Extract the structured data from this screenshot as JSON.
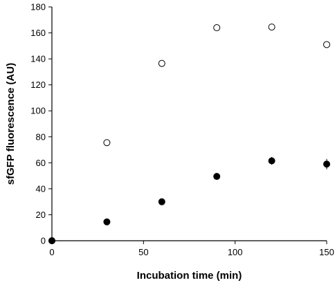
{
  "chart_data": {
    "type": "scatter",
    "title": "",
    "xlabel": "Incubation time (min)",
    "ylabel": "sfGFP fluorescence (AU)",
    "xlim": [
      0,
      150
    ],
    "ylim": [
      0,
      180
    ],
    "x_ticks": [
      0,
      50,
      100,
      150
    ],
    "y_ticks": [
      0,
      20,
      40,
      60,
      80,
      100,
      120,
      140,
      160,
      180
    ],
    "grid": false,
    "legend": "none",
    "series": [
      {
        "marker": "open-circle",
        "color": "#000000",
        "points": [
          {
            "x": 0,
            "y": 0,
            "err": 0
          },
          {
            "x": 30,
            "y": 75.5,
            "err": 1
          },
          {
            "x": 60,
            "y": 136.5,
            "err": 1
          },
          {
            "x": 90,
            "y": 164,
            "err": 1
          },
          {
            "x": 120,
            "y": 164.5,
            "err": 2
          },
          {
            "x": 150,
            "y": 151,
            "err": 1
          }
        ]
      },
      {
        "marker": "filled-circle",
        "color": "#000000",
        "points": [
          {
            "x": 0,
            "y": 0,
            "err": 0
          },
          {
            "x": 30,
            "y": 14.5,
            "err": 1
          },
          {
            "x": 60,
            "y": 30,
            "err": 1
          },
          {
            "x": 90,
            "y": 49.5,
            "err": 1
          },
          {
            "x": 120,
            "y": 61.5,
            "err": 3
          },
          {
            "x": 150,
            "y": 59,
            "err": 4
          }
        ]
      }
    ]
  }
}
